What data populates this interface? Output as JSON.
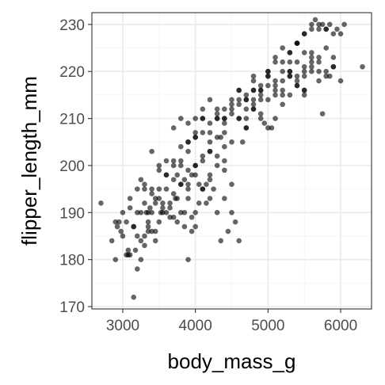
{
  "colors": {
    "panel_border": "#333333",
    "grid_major": "#ebebeb",
    "grid_minor": "#f5f5f5",
    "point": "#000000",
    "tick_text": "#4d4d4d",
    "background": "#ffffff"
  },
  "chart_data": {
    "type": "scatter",
    "title": "",
    "xlabel": "body_mass_g",
    "ylabel": "flipper_length_mm",
    "xlim": [
      2575,
      6425
    ],
    "ylim": [
      169.5,
      232.5
    ],
    "x_ticks": [
      3000,
      4000,
      5000,
      6000
    ],
    "x_tick_labels": [
      "3000",
      "4000",
      "5000",
      "6000"
    ],
    "y_ticks": [
      170,
      180,
      190,
      200,
      210,
      220,
      230
    ],
    "y_tick_labels": [
      "170",
      "180",
      "190",
      "200",
      "210",
      "220",
      "230"
    ],
    "grid": true,
    "legend": "none",
    "point_alpha": 0.6,
    "x": [
      2700,
      2850,
      2900,
      2900,
      2925,
      2975,
      3050,
      3075,
      3150,
      3175,
      3200,
      3250,
      3300,
      3300,
      3325,
      3350,
      3400,
      3450,
      3000,
      3000,
      3050,
      3100,
      3150,
      3200,
      3250,
      3300,
      3350,
      3400,
      3450,
      3500,
      3550,
      3600,
      3650,
      3700,
      3750,
      3800,
      3850,
      3900,
      3950,
      4000,
      3100,
      3200,
      3300,
      3400,
      3500,
      3600,
      3700,
      3800,
      3900,
      4000,
      4100,
      4200,
      3150,
      3250,
      3350,
      3450,
      3550,
      3650,
      3750,
      3850,
      3950,
      4050,
      3300,
      3400,
      3500,
      3600,
      3700,
      3800,
      3900,
      4000,
      4100,
      4200,
      4300,
      4400,
      3350,
      3450,
      3550,
      3650,
      3750,
      3850,
      3950,
      4050,
      4150,
      4250,
      4350,
      3500,
      3600,
      3700,
      3800,
      3900,
      4000,
      4100,
      4200,
      4300,
      4400,
      4500,
      3400,
      3500,
      3600,
      3700,
      3800,
      3900,
      4000,
      4100,
      4200,
      4300,
      4400,
      4500,
      4600,
      3700,
      3800,
      3900,
      4000,
      4100,
      4200,
      4300,
      4400,
      3800,
      3900,
      4000,
      4100,
      4200,
      4300,
      4400,
      4500,
      4600,
      4700,
      3900,
      4000,
      4100,
      4200,
      4300,
      4400,
      4500,
      4600,
      4700,
      4800,
      4900,
      4000,
      4100,
      4200,
      4300,
      4400,
      4500,
      4600,
      4700,
      4800,
      4900,
      5000,
      4200,
      4300,
      4400,
      4500,
      4600,
      4700,
      4800,
      4900,
      5000,
      5100,
      4400,
      4500,
      4600,
      4700,
      4800,
      4900,
      5000,
      5100,
      5200,
      5300,
      4600,
      4700,
      4800,
      4900,
      5000,
      5100,
      5200,
      5300,
      5400,
      5500,
      4700,
      4800,
      4900,
      5000,
      5100,
      5200,
      5300,
      5400,
      5500,
      5600,
      4800,
      4900,
      5000,
      5100,
      5200,
      5300,
      5400,
      5500,
      5600,
      5700,
      5000,
      5100,
      5200,
      5300,
      5400,
      5500,
      5600,
      5700,
      5800,
      5900,
      5100,
      5200,
      5300,
      5400,
      5500,
      5600,
      5700,
      5800,
      5900,
      6000,
      5200,
      5300,
      5400,
      5500,
      5600,
      5700,
      5800,
      5900,
      6000,
      5300,
      5400,
      5500,
      5600,
      5700,
      5800,
      5900,
      6050,
      5400,
      5500,
      5600,
      5650,
      5700,
      5750,
      5800,
      5850,
      5950,
      6300,
      3075,
      3200,
      4450,
      4550,
      4800,
      5050,
      5500,
      5750,
      5850,
      4950,
      4650,
      3100,
      3250,
      3375,
      3525,
      3900,
      4150,
      4350,
      2950,
      3725
    ],
    "y": [
      192,
      184,
      188,
      180,
      187,
      186,
      181,
      182,
      172,
      182,
      178,
      184,
      185,
      183,
      190,
      187,
      186,
      184,
      185,
      190,
      188,
      191,
      187,
      190,
      190,
      192,
      188,
      190,
      193,
      188,
      192,
      190,
      191,
      189,
      188,
      190,
      187,
      193,
      186,
      187,
      193,
      195,
      196,
      195,
      193,
      195,
      194,
      196,
      195,
      198,
      195,
      197,
      187,
      197,
      190,
      186,
      190,
      192,
      198,
      197,
      189,
      192,
      195,
      194,
      195,
      198,
      197,
      196,
      199,
      190,
      195,
      193,
      190,
      193,
      186,
      192,
      191,
      189,
      193,
      190,
      198,
      196,
      192,
      195,
      184,
      200,
      201,
      200,
      201,
      196,
      200,
      202,
      198,
      200,
      201,
      190,
      203,
      199,
      198,
      201,
      200,
      203,
      200,
      201,
      203,
      202,
      199,
      196,
      184,
      208,
      204,
      205,
      207,
      210,
      203,
      206,
      204,
      210,
      209,
      210,
      207,
      205,
      210,
      209,
      211,
      210,
      208,
      205,
      206,
      210,
      209,
      210,
      207,
      205,
      210,
      208,
      212,
      210,
      206,
      212,
      207,
      211,
      210,
      212,
      213,
      210,
      214,
      211,
      208,
      214,
      212,
      210,
      213,
      214,
      212,
      216,
      214,
      214,
      210,
      212,
      214,
      216,
      215,
      212,
      216,
      217,
      215,
      213,
      219,
      216,
      214,
      216,
      215,
      219,
      217,
      216,
      215,
      219,
      216,
      214,
      219,
      217,
      220,
      216,
      215,
      219,
      218,
      216,
      220,
      218,
      216,
      220,
      218,
      222,
      220,
      217,
      219,
      221,
      218,
      219,
      222,
      220,
      224,
      217,
      221,
      223,
      220,
      219,
      221,
      223,
      218,
      220,
      222,
      220,
      224,
      222,
      220,
      221,
      218,
      225,
      222,
      226,
      224,
      222,
      223,
      225,
      223,
      228,
      224,
      226,
      228,
      229,
      230,
      229,
      228,
      230,
      226,
      228,
      230,
      231,
      229,
      230,
      229,
      230,
      229,
      221,
      181,
      185,
      186,
      188,
      213,
      208,
      215,
      211,
      219,
      209,
      205,
      181,
      180,
      191,
      190,
      180,
      196,
      206,
      188,
      193
    ]
  }
}
